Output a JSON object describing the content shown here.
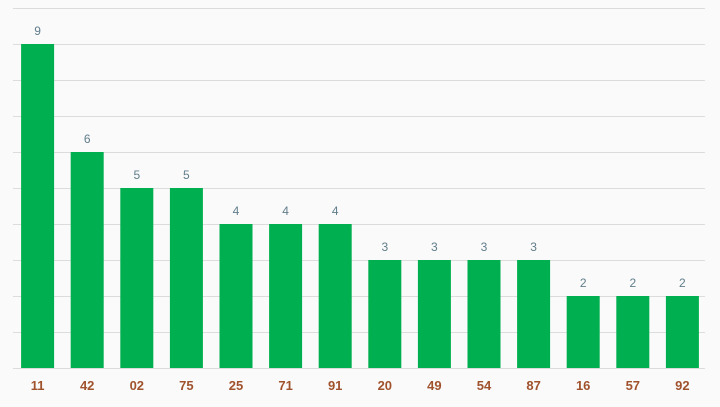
{
  "chart_data": {
    "type": "bar",
    "categories": [
      "11",
      "42",
      "02",
      "75",
      "25",
      "71",
      "91",
      "20",
      "49",
      "54",
      "87",
      "16",
      "57",
      "92"
    ],
    "values": [
      9,
      6,
      5,
      5,
      4,
      4,
      4,
      3,
      3,
      3,
      3,
      2,
      2,
      2
    ],
    "ylim": [
      0,
      10
    ],
    "grid": true,
    "legend": "none",
    "colors": {
      "bar": "#00b050",
      "value_label": "#607d8b",
      "category_label": "#a0522d",
      "gridline": "#dcdcdc",
      "background": "#fafafa"
    }
  }
}
